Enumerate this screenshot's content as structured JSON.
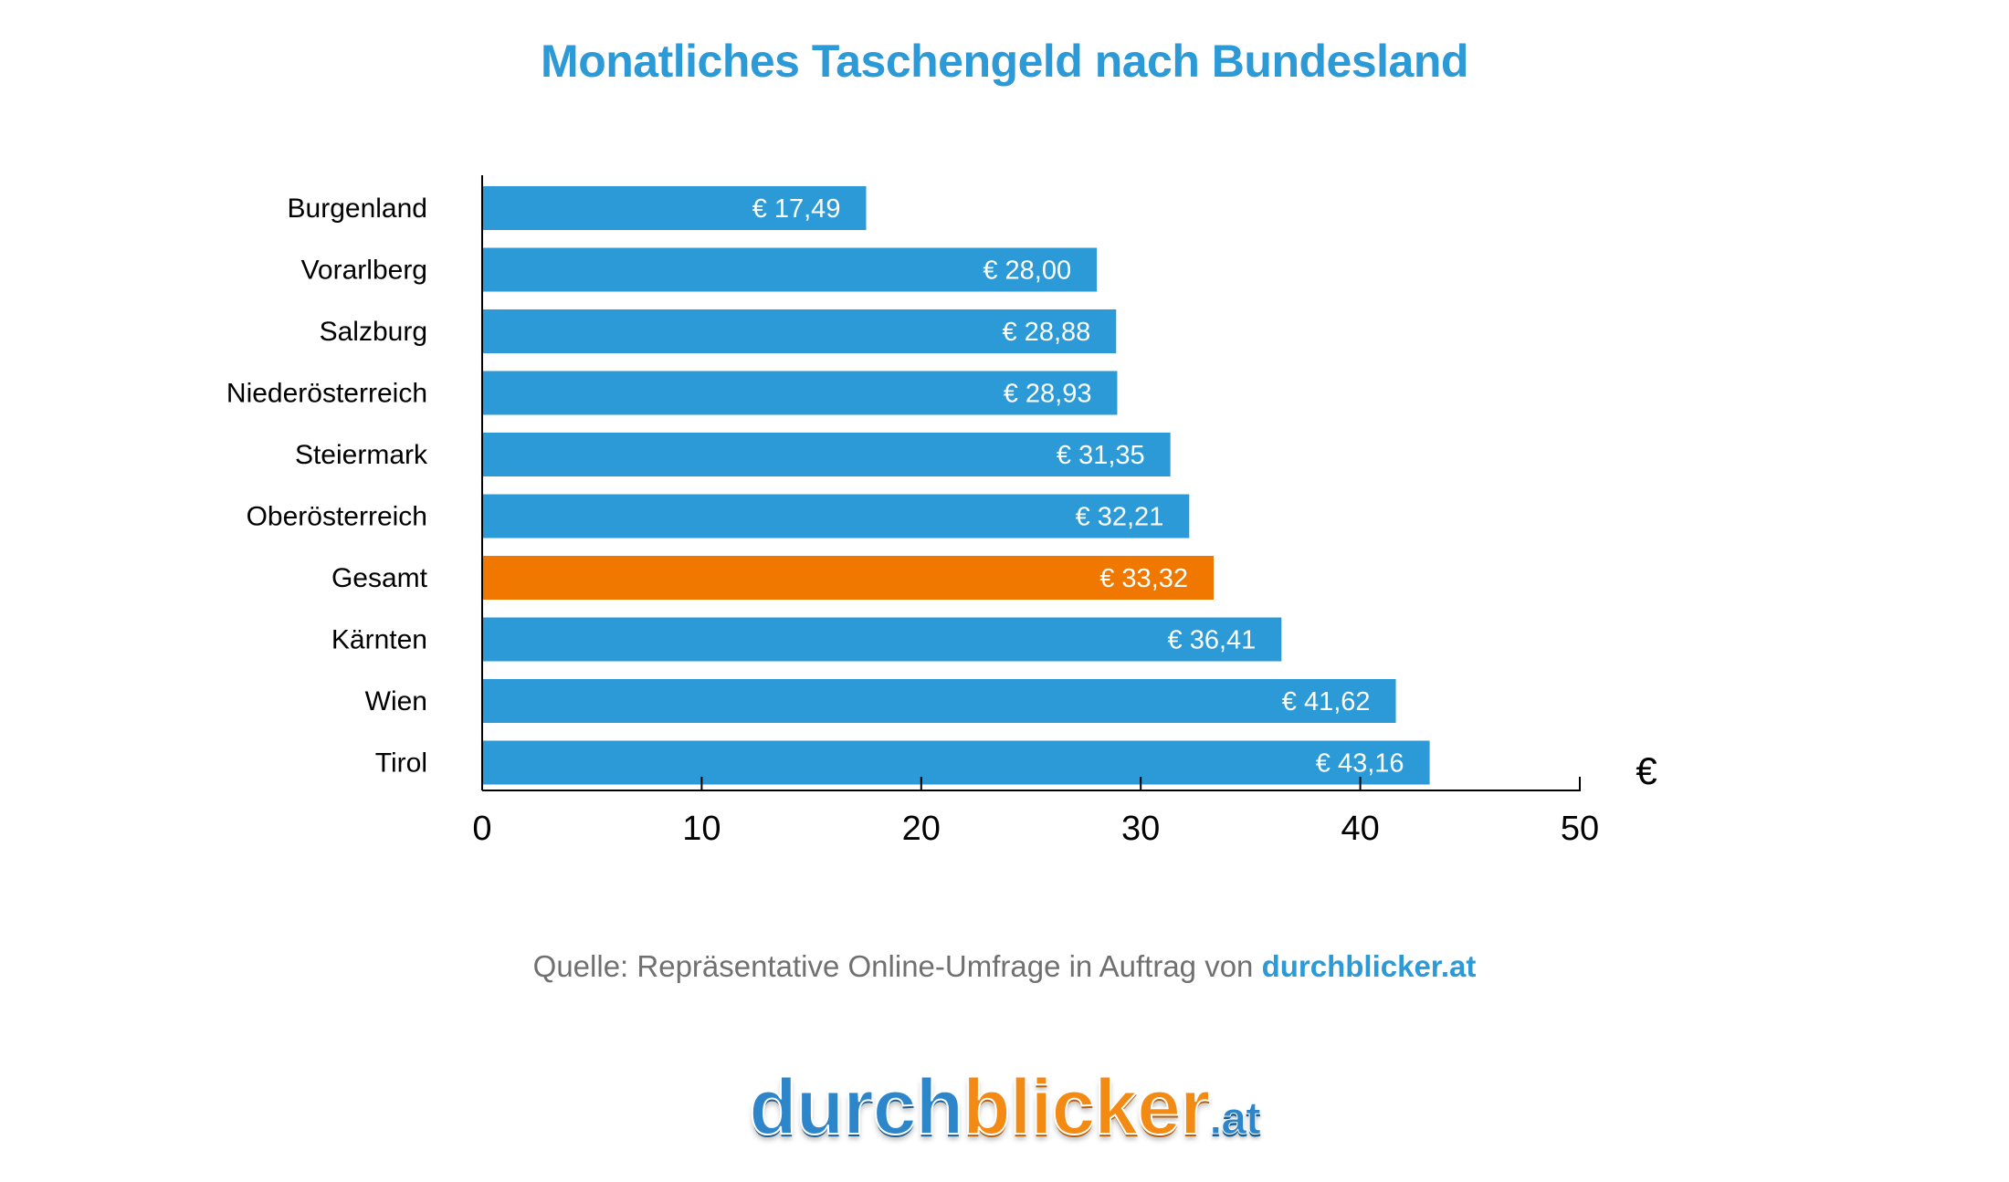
{
  "chart_data": {
    "type": "bar",
    "orientation": "horizontal",
    "title": "Monatliches Taschengeld nach Bundesland",
    "categories": [
      "Burgenland",
      "Vorarlberg",
      "Salzburg",
      "Niederösterreich",
      "Steiermark",
      "Oberösterreich",
      "Gesamt",
      "Kärnten",
      "Wien",
      "Tirol"
    ],
    "values": [
      17.49,
      28.0,
      28.88,
      28.93,
      31.35,
      32.21,
      33.32,
      36.41,
      41.62,
      43.16
    ],
    "data_labels": [
      "€ 17,49",
      "€ 28,00",
      "€ 28,88",
      "€ 28,93",
      "€ 31,35",
      "€ 32,21",
      "€ 33,32",
      "€ 36,41",
      "€ 41,62",
      "€ 43,16"
    ],
    "highlight_category": "Gesamt",
    "xlim": [
      0,
      50
    ],
    "xticks": [
      0,
      10,
      20,
      30,
      40,
      50
    ],
    "xlabel": "€",
    "ylabel": "",
    "grid": false,
    "colors": {
      "bar": "#2c9ad6",
      "highlight": "#f07800",
      "title": "#2c9ad6",
      "axis": "#000000"
    }
  },
  "source": {
    "prefix": "Quelle: Repräsentative Online-Umfrage in Auftrag von ",
    "link": "durchblicker.at"
  },
  "logo": {
    "part1": "durch",
    "part2": "blicker",
    "part3": ".at"
  }
}
